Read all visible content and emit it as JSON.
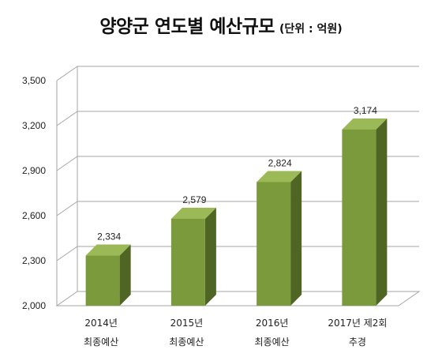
{
  "title": "양양군 연도별 예산규모",
  "unit": "(단위 : 억원)",
  "chart_data": {
    "type": "bar",
    "categories": [
      [
        "2014년",
        "최종예산"
      ],
      [
        "2015년",
        "최종예산"
      ],
      [
        "2016년",
        "최종예산"
      ],
      [
        "2017년 제2회",
        "추경"
      ]
    ],
    "values": [
      2334,
      2579,
      2824,
      3174
    ],
    "value_labels": [
      "2,334",
      "2,579",
      "2,824",
      "3,174"
    ],
    "yticks": [
      2000,
      2300,
      2600,
      2900,
      3200,
      3500
    ],
    "ytick_labels": [
      "2,000",
      "2,300",
      "2,600",
      "2,900",
      "3,200",
      "3,500"
    ],
    "ylim": [
      2000,
      3500
    ],
    "grid": true,
    "style": "3d-column",
    "colors": {
      "front": "#7a9a3c",
      "side": "#4e6524",
      "top": "#9cb957",
      "grid": "#a6a6a6"
    }
  }
}
